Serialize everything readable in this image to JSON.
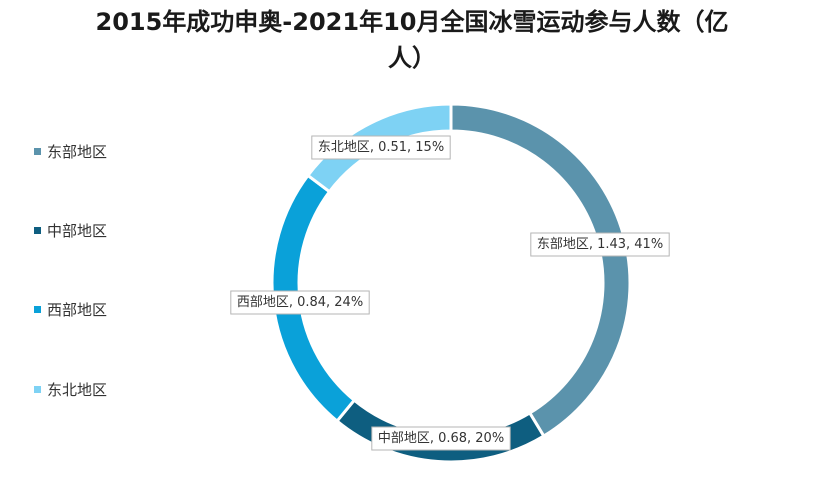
{
  "title_line1": "2015年成功申奥-2021年10月全国冰雪运动参与人数（亿",
  "title_line2": "人）",
  "chart_data": {
    "type": "pie",
    "subtype": "doughnut",
    "title": "2015年成功申奥-2021年10月全国冰雪运动参与人数（亿人）",
    "legend_position": "left",
    "categories": [
      "东部地区",
      "中部地区",
      "西部地区",
      "东北地区"
    ],
    "values": [
      1.43,
      0.68,
      0.84,
      0.51
    ],
    "percents": [
      "41%",
      "20%",
      "24%",
      "15%"
    ],
    "colors": [
      "#5b93ac",
      "#0e5e80",
      "#0aa1d9",
      "#7ed2f4"
    ],
    "data_labels": [
      "东部地区, 1.43, 41%",
      "中部地区, 0.68, 20%",
      "西部地区, 0.84, 24%",
      "东北地区, 0.51, 15%"
    ]
  }
}
